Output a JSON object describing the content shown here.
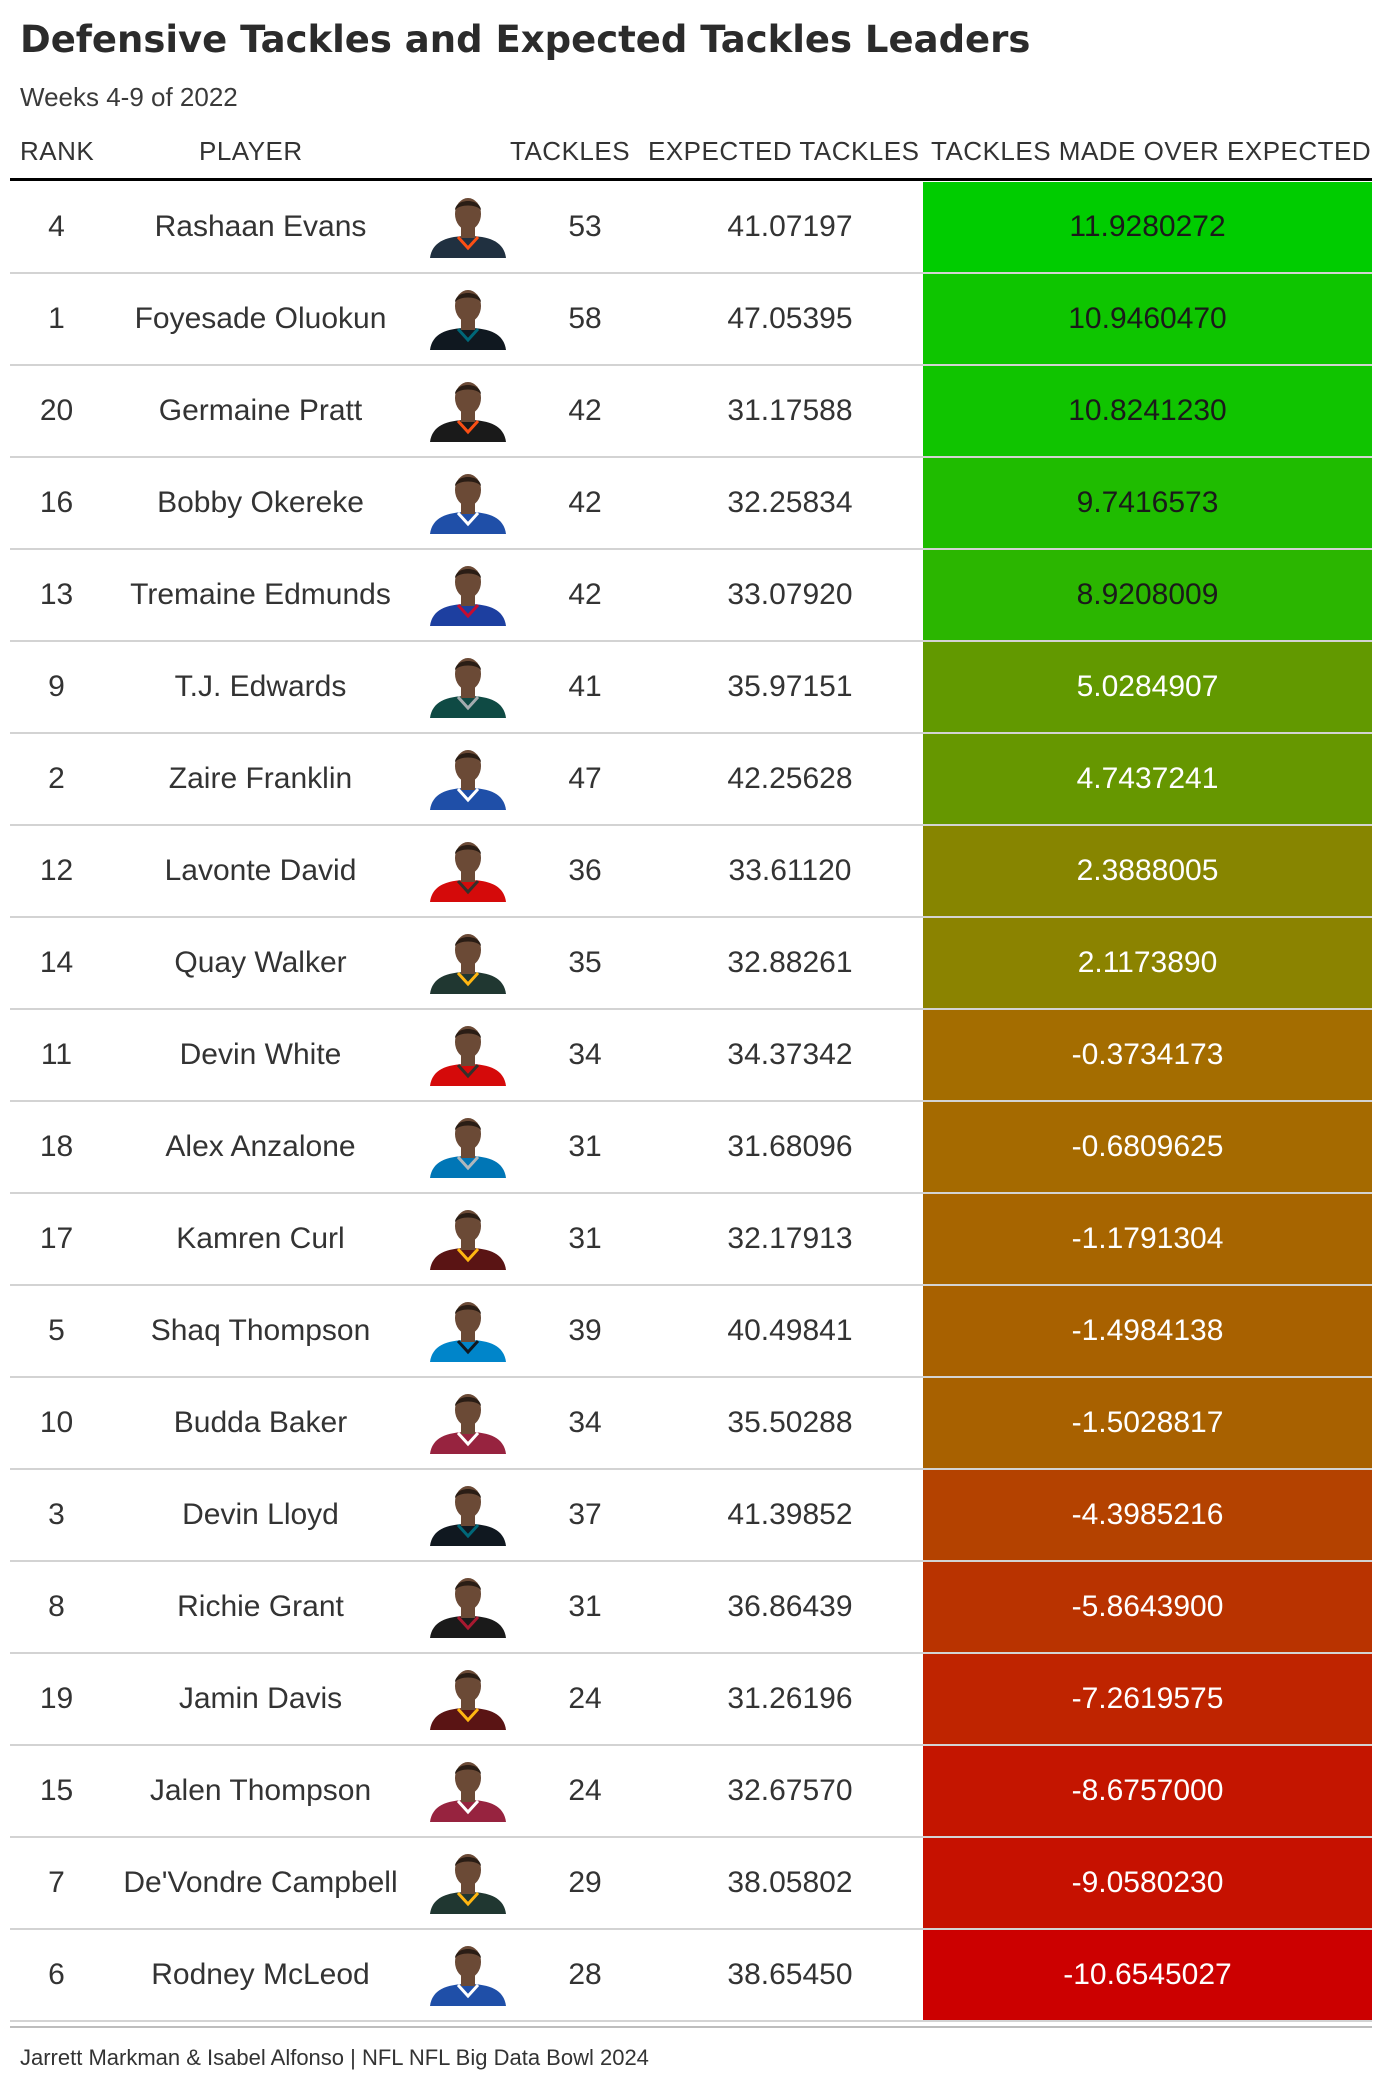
{
  "title": "Defensive Tackles and Expected Tackles Leaders",
  "subtitle": "Weeks 4-9 of 2022",
  "columns": {
    "rank": "RANK",
    "player": "PLAYER",
    "tackles": "TACKLES",
    "expected": "EXPECTED TACKLES",
    "tmoe": "TACKLES MADE OVER EXPECTED"
  },
  "caption": "Jarrett Markman & Isabel Alfonso | NFL NFL Big Data Bowl 2024",
  "colors": {
    "high": "#00cc00",
    "mid": "#a07800",
    "low": "#cc0000",
    "text_dark": "#1a1a1a",
    "text_light": "#ffffff"
  },
  "chart_data": {
    "type": "table",
    "title": "Defensive Tackles and Expected Tackles Leaders",
    "subtitle": "Weeks 4-9 of 2022",
    "columns": [
      "RANK",
      "PLAYER",
      "TACKLES",
      "EXPECTED TACKLES",
      "TACKLES MADE OVER EXPECTED"
    ],
    "rows": [
      {
        "rank": "4",
        "player": "Rashaan Evans",
        "tackles": "53",
        "expected": "41.07197",
        "tmoe": "11.9280272",
        "value": 11.9280272,
        "jersey": "#203040",
        "accent": "#fb4f14"
      },
      {
        "rank": "1",
        "player": "Foyesade Oluokun",
        "tackles": "58",
        "expected": "47.05395",
        "tmoe": "10.9460470",
        "value": 10.946047,
        "jersey": "#101820",
        "accent": "#006778"
      },
      {
        "rank": "20",
        "player": "Germaine Pratt",
        "tackles": "42",
        "expected": "31.17588",
        "tmoe": "10.8241230",
        "value": 10.824123,
        "jersey": "#1a1a1a",
        "accent": "#fb4f14"
      },
      {
        "rank": "16",
        "player": "Bobby Okereke",
        "tackles": "42",
        "expected": "32.25834",
        "tmoe": "9.7416573",
        "value": 9.7416573,
        "jersey": "#1f4fa8",
        "accent": "#ffffff"
      },
      {
        "rank": "13",
        "player": "Tremaine Edmunds",
        "tackles": "42",
        "expected": "33.07920",
        "tmoe": "8.9208009",
        "value": 8.9208009,
        "jersey": "#1d3fa0",
        "accent": "#c60c30"
      },
      {
        "rank": "9",
        "player": "T.J. Edwards",
        "tackles": "41",
        "expected": "35.97151",
        "tmoe": "5.0284907",
        "value": 5.0284907,
        "jersey": "#0f4a44",
        "accent": "#a5acaf"
      },
      {
        "rank": "2",
        "player": "Zaire Franklin",
        "tackles": "47",
        "expected": "42.25628",
        "tmoe": "4.7437241",
        "value": 4.7437241,
        "jersey": "#1f4fa8",
        "accent": "#ffffff"
      },
      {
        "rank": "12",
        "player": "Lavonte David",
        "tackles": "36",
        "expected": "33.61120",
        "tmoe": "2.3888005",
        "value": 2.3888005,
        "jersey": "#d50a0a",
        "accent": "#34302b"
      },
      {
        "rank": "14",
        "player": "Quay Walker",
        "tackles": "35",
        "expected": "32.88261",
        "tmoe": "2.1173890",
        "value": 2.117389,
        "jersey": "#203731",
        "accent": "#ffb612"
      },
      {
        "rank": "11",
        "player": "Devin White",
        "tackles": "34",
        "expected": "34.37342",
        "tmoe": "-0.3734173",
        "value": -0.3734173,
        "jersey": "#d50a0a",
        "accent": "#34302b"
      },
      {
        "rank": "18",
        "player": "Alex Anzalone",
        "tackles": "31",
        "expected": "31.68096",
        "tmoe": "-0.6809625",
        "value": -0.6809625,
        "jersey": "#0076b6",
        "accent": "#b0b7bc"
      },
      {
        "rank": "17",
        "player": "Kamren Curl",
        "tackles": "31",
        "expected": "32.17913",
        "tmoe": "-1.1791304",
        "value": -1.1791304,
        "jersey": "#5a1414",
        "accent": "#ffb612"
      },
      {
        "rank": "5",
        "player": "Shaq Thompson",
        "tackles": "39",
        "expected": "40.49841",
        "tmoe": "-1.4984138",
        "value": -1.4984138,
        "jersey": "#0085ca",
        "accent": "#101820"
      },
      {
        "rank": "10",
        "player": "Budda Baker",
        "tackles": "34",
        "expected": "35.50288",
        "tmoe": "-1.5028817",
        "value": -1.5028817,
        "jersey": "#97233f",
        "accent": "#ffffff"
      },
      {
        "rank": "3",
        "player": "Devin Lloyd",
        "tackles": "37",
        "expected": "41.39852",
        "tmoe": "-4.3985216",
        "value": -4.3985216,
        "jersey": "#101820",
        "accent": "#006778"
      },
      {
        "rank": "8",
        "player": "Richie Grant",
        "tackles": "31",
        "expected": "36.86439",
        "tmoe": "-5.8643900",
        "value": -5.86439,
        "jersey": "#1a1a1a",
        "accent": "#a71930"
      },
      {
        "rank": "19",
        "player": "Jamin Davis",
        "tackles": "24",
        "expected": "31.26196",
        "tmoe": "-7.2619575",
        "value": -7.2619575,
        "jersey": "#5a1414",
        "accent": "#ffb612"
      },
      {
        "rank": "15",
        "player": "Jalen Thompson",
        "tackles": "24",
        "expected": "32.67570",
        "tmoe": "-8.6757000",
        "value": -8.6757,
        "jersey": "#97233f",
        "accent": "#ffffff"
      },
      {
        "rank": "7",
        "player": "De'Vondre Campbell",
        "tackles": "29",
        "expected": "38.05802",
        "tmoe": "-9.0580230",
        "value": -9.058023,
        "jersey": "#203731",
        "accent": "#ffb612"
      },
      {
        "rank": "6",
        "player": "Rodney McLeod",
        "tackles": "28",
        "expected": "38.65450",
        "tmoe": "-10.6545027",
        "value": -10.6545027,
        "jersey": "#1f4fa8",
        "accent": "#ffffff"
      }
    ],
    "color_scale": {
      "min": -10.6545027,
      "max": 11.9280272,
      "low": "#cc0000",
      "mid": "#a07800",
      "high": "#00cc00"
    }
  }
}
